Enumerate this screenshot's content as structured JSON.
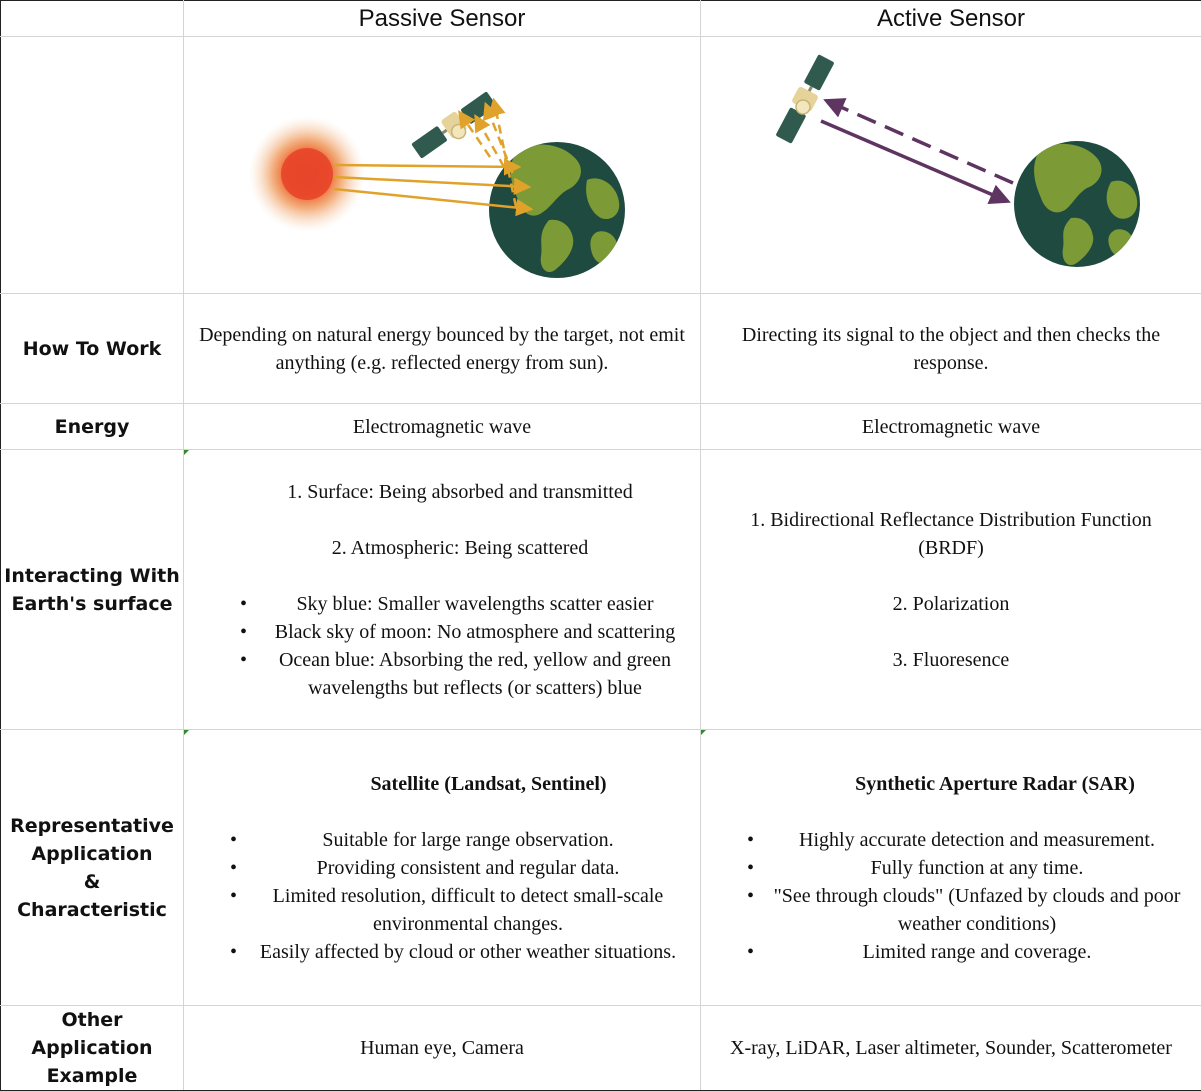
{
  "header": {
    "passive": "Passive Sensor",
    "active": "Active Sensor"
  },
  "rows": {
    "how": {
      "label": "How To Work",
      "passive": "Depending on natural energy bounced by the target, not emit anything (e.g. reflected energy from sun).",
      "active": "Directing its signal to the object and then checks the response."
    },
    "energy": {
      "label": "Energy",
      "passive": "Electromagnetic wave",
      "active": "Electromagnetic wave"
    },
    "interacting": {
      "label_line1": "Interacting With",
      "label_line2": "Earth's surface",
      "passive_item1": "1. Surface: Being absorbed and transmitted",
      "passive_item2": "2. Atmospheric: Being scattered",
      "passive_bullets": [
        "Sky blue: Smaller wavelengths scatter easier",
        "Black sky of moon: No atmosphere and scattering",
        "Ocean blue: Absorbing the red, yellow and green wavelengths but reflects (or scatters) blue"
      ],
      "active_item1_line1": "1. Bidirectional Reflectance Distribution Function",
      "active_item1_line2": "(BRDF)",
      "active_item2": "2. Polarization",
      "active_item3": "3. Fluoresence"
    },
    "representative": {
      "label_line1": "Representative",
      "label_line2": "Application",
      "label_line3": "&",
      "label_line4": "Characteristic",
      "passive_title": "Satellite (Landsat, Sentinel)",
      "passive_bullets": [
        "Suitable for large range observation.",
        "Providing consistent and regular data.",
        "Limited resolution, difficult to detect small-scale environmental changes.",
        "Easily affected by cloud or other weather situations."
      ],
      "active_title": "Synthetic Aperture Radar (SAR)",
      "active_bullets": [
        "Highly accurate detection and measurement.",
        "Fully function at any time.",
        "\"See through clouds\" (Unfazed by clouds and poor weather conditions)",
        "Limited range and coverage."
      ]
    },
    "other": {
      "label_line1": "Other",
      "label_line2": "Application",
      "label_line3": "Example",
      "passive": "Human eye, Camera",
      "active": "X-ray, LiDAR, Laser altimeter, Sounder, Scatterometer"
    }
  },
  "illustration": {
    "passive_description_icons": [
      "sun-icon",
      "satellite-icon",
      "earth-icon"
    ],
    "active_description_icons": [
      "satellite-icon",
      "earth-icon"
    ],
    "colors": {
      "sun_core": "#e8452a",
      "sun_glow": "#f3c28c",
      "solar_arrow": "#e0a22a",
      "radar_arrow": "#5e3560",
      "earth_ocean": "#1f4a40",
      "earth_land": "#7c9a36",
      "satellite_panel": "#2f5a4d",
      "satellite_body": "#e6d39a"
    }
  }
}
